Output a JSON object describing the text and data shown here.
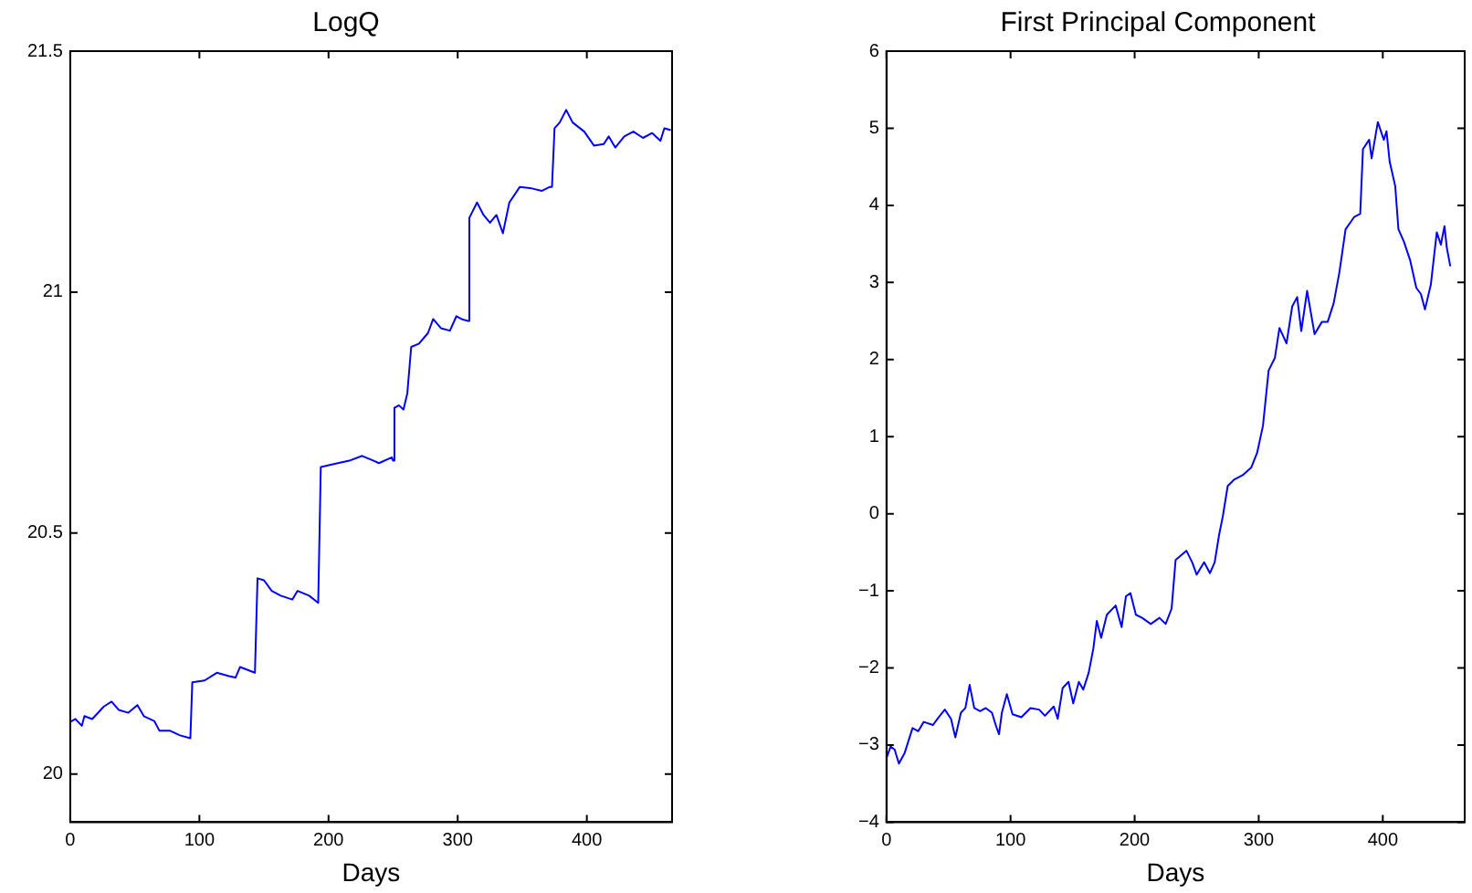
{
  "chart_data": [
    {
      "type": "line",
      "title": "LogQ",
      "xlabel": "Days",
      "grid": false,
      "marker": "none",
      "line_style": "solid",
      "xlim": [
        0,
        466
      ],
      "ylim": [
        19.9,
        21.5
      ],
      "xticks": [
        0,
        100,
        200,
        300,
        400
      ],
      "yticks": [
        20,
        20.5,
        21,
        21.5
      ],
      "x": [
        0,
        4,
        9,
        11,
        17,
        26,
        32,
        37.5,
        45,
        52,
        57,
        65,
        69,
        77,
        85,
        93,
        94.5,
        104,
        113.5,
        123,
        128,
        131.5,
        143,
        145,
        150,
        156,
        163,
        172,
        176,
        185,
        192,
        194,
        204,
        216,
        226,
        235,
        239,
        249,
        250,
        251,
        254.5,
        258,
        261,
        264,
        270,
        277,
        281,
        287,
        294,
        299,
        303,
        308,
        309,
        315,
        320,
        325,
        330,
        335,
        340,
        348,
        356,
        365,
        371,
        373,
        375,
        379,
        384,
        389,
        398,
        405.5,
        413,
        417,
        422,
        429,
        436,
        443.5,
        450.6,
        457,
        460,
        465
      ],
      "series": [
        {
          "color": "#0000ff",
          "values": [
            20.108,
            20.114,
            20.1,
            20.12,
            20.114,
            20.14,
            20.15,
            20.133,
            20.127,
            20.143,
            20.12,
            20.11,
            20.09,
            20.09,
            20.08,
            20.074,
            20.19,
            20.194,
            20.21,
            20.203,
            20.2,
            20.222,
            20.21,
            20.406,
            20.402,
            20.38,
            20.37,
            20.362,
            20.38,
            20.37,
            20.355,
            20.637,
            20.643,
            20.65,
            20.66,
            20.65,
            20.645,
            20.657,
            20.65,
            20.76,
            20.765,
            20.756,
            20.79,
            20.886,
            20.893,
            20.915,
            20.944,
            20.925,
            20.92,
            20.95,
            20.944,
            20.94,
            21.154,
            21.186,
            21.16,
            21.144,
            21.16,
            21.122,
            21.186,
            21.218,
            21.216,
            21.21,
            21.218,
            21.218,
            21.34,
            21.352,
            21.378,
            21.352,
            21.333,
            21.304,
            21.307,
            21.323,
            21.3,
            21.323,
            21.333,
            21.32,
            21.33,
            21.314,
            21.34,
            21.336
          ]
        }
      ]
    },
    {
      "type": "line",
      "title": "First Principal Component",
      "xlabel": "Days",
      "grid": false,
      "marker": "none",
      "line_style": "solid",
      "xlim": [
        0,
        466
      ],
      "ylim": [
        -4,
        6
      ],
      "xticks": [
        0,
        100,
        200,
        300,
        400
      ],
      "yticks": [
        {
          "value": -4,
          "label": "−4"
        },
        {
          "value": -3,
          "label": "−3"
        },
        {
          "value": -2,
          "label": "−2"
        },
        {
          "value": -1,
          "label": "−1"
        },
        0,
        1,
        2,
        3,
        4,
        5,
        6
      ],
      "x": [
        0,
        3.3,
        6.6,
        10,
        14.7,
        21,
        25.6,
        30,
        37.5,
        42,
        47,
        52,
        55.5,
        60,
        63.6,
        67,
        70.7,
        75.5,
        80,
        85,
        88,
        90.7,
        93,
        97,
        101.6,
        108.7,
        116,
        123,
        127.7,
        134.8,
        138,
        142,
        146.7,
        150.5,
        155,
        158.6,
        163,
        166.7,
        169.5,
        173,
        177.6,
        184.7,
        189.5,
        193,
        196.6,
        201,
        206,
        213,
        220,
        225,
        229.8,
        233,
        241.7,
        246.4,
        250,
        256,
        260.7,
        264.5,
        268,
        271,
        275,
        280,
        287,
        294,
        298.7,
        303.4,
        308,
        313,
        316.7,
        322.4,
        327,
        331,
        334.3,
        339,
        345,
        351,
        355.6,
        360.4,
        365,
        370,
        377,
        381.8,
        384,
        389,
        391,
        396,
        400.8,
        403,
        405.5,
        410,
        412.6,
        417,
        422,
        427,
        430.7,
        434,
        438.7,
        443.5,
        446.8,
        449.7,
        451.6,
        454.4
      ],
      "series": [
        {
          "color": "#0000ff",
          "values": [
            -3.17,
            -3.02,
            -3.06,
            -3.24,
            -3.1,
            -2.78,
            -2.82,
            -2.7,
            -2.74,
            -2.64,
            -2.54,
            -2.66,
            -2.9,
            -2.58,
            -2.52,
            -2.22,
            -2.52,
            -2.56,
            -2.52,
            -2.58,
            -2.74,
            -2.86,
            -2.58,
            -2.34,
            -2.6,
            -2.64,
            -2.52,
            -2.54,
            -2.62,
            -2.5,
            -2.66,
            -2.26,
            -2.18,
            -2.46,
            -2.18,
            -2.28,
            -2.06,
            -1.75,
            -1.39,
            -1.61,
            -1.31,
            -1.19,
            -1.47,
            -1.07,
            -1.03,
            -1.31,
            -1.35,
            -1.43,
            -1.35,
            -1.43,
            -1.23,
            -0.6,
            -0.48,
            -0.63,
            -0.79,
            -0.63,
            -0.77,
            -0.63,
            -0.28,
            -0.04,
            0.36,
            0.44,
            0.5,
            0.6,
            0.79,
            1.14,
            1.86,
            2.02,
            2.41,
            2.21,
            2.69,
            2.81,
            2.37,
            2.89,
            2.33,
            2.49,
            2.49,
            2.73,
            3.13,
            3.69,
            3.85,
            3.89,
            4.73,
            4.85,
            4.61,
            5.08,
            4.85,
            4.96,
            4.57,
            4.25,
            3.69,
            3.53,
            3.29,
            2.93,
            2.85,
            2.65,
            2.97,
            3.65,
            3.49,
            3.73,
            3.45,
            3.21
          ]
        }
      ]
    }
  ]
}
